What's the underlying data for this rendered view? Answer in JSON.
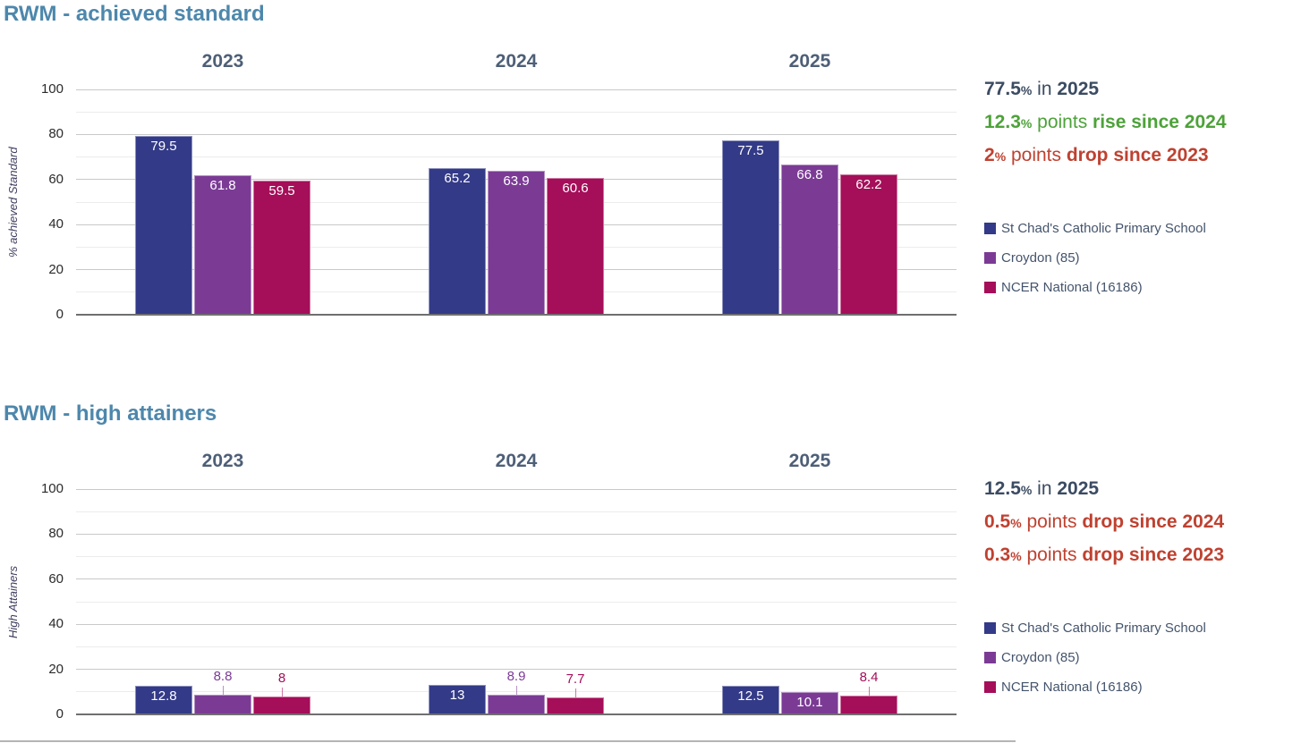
{
  "chart_data": [
    {
      "type": "bar",
      "title": "RWM - achieved standard",
      "ylabel": "% achieved Standard",
      "categories": [
        "2023",
        "2024",
        "2025"
      ],
      "series": [
        {
          "name": "St Chad's Catholic Primary School",
          "color": "#333a87",
          "values": [
            79.5,
            65.2,
            77.5
          ]
        },
        {
          "name": "Croydon (85)",
          "color": "#7b3b95",
          "values": [
            61.8,
            63.9,
            66.8
          ]
        },
        {
          "name": "NCER National (16186)",
          "color": "#a50e59",
          "values": [
            59.5,
            60.6,
            62.2
          ]
        }
      ],
      "ylim": [
        0,
        100
      ],
      "yticks": [
        0,
        20,
        40,
        60,
        80,
        100
      ],
      "grid": true,
      "legend_position": "right",
      "stats": [
        {
          "value": "77.5",
          "pct": "%",
          "plain": " in ",
          "bold": "2025",
          "color": "#3b4b62"
        },
        {
          "value": "12.3",
          "pct": "%",
          "plain": " points ",
          "bold": "rise since 2024",
          "color": "#4da239"
        },
        {
          "value": "2",
          "pct": "%",
          "plain": " points ",
          "bold": "drop since 2023",
          "color": "#bf4130"
        }
      ]
    },
    {
      "type": "bar",
      "title": "RWM - high attainers",
      "ylabel": "High Attainers",
      "categories": [
        "2023",
        "2024",
        "2025"
      ],
      "series": [
        {
          "name": "St Chad's Catholic Primary School",
          "color": "#333a87",
          "values": [
            12.8,
            13,
            12.5
          ]
        },
        {
          "name": "Croydon (85)",
          "color": "#7b3b95",
          "values": [
            8.8,
            8.9,
            10.1
          ]
        },
        {
          "name": "NCER National (16186)",
          "color": "#a50e59",
          "values": [
            8,
            7.7,
            8.4
          ]
        }
      ],
      "ylim": [
        0,
        100
      ],
      "yticks": [
        0,
        20,
        40,
        60,
        80,
        100
      ],
      "grid": true,
      "legend_position": "right",
      "stats": [
        {
          "value": "12.5",
          "pct": "%",
          "plain": " in ",
          "bold": "2025",
          "color": "#3b4b62"
        },
        {
          "value": "0.5",
          "pct": "%",
          "plain": " points ",
          "bold": "drop since 2024",
          "color": "#bf4130"
        },
        {
          "value": "0.3",
          "pct": "%",
          "plain": " points ",
          "bold": "drop since 2023",
          "color": "#bf4130"
        }
      ]
    }
  ],
  "theme": {
    "title_color": "#4d87ac",
    "year_header_color": "#4e5f77",
    "legend_text_color": "#44546c",
    "tick_text_color": "#2b2b2b",
    "axis_title_color": "#3e3e60",
    "grid_major": "#c9c9c9",
    "grid_minor": "#ececec",
    "zero_line": "#6f6f6f",
    "background": "#ffffff"
  }
}
